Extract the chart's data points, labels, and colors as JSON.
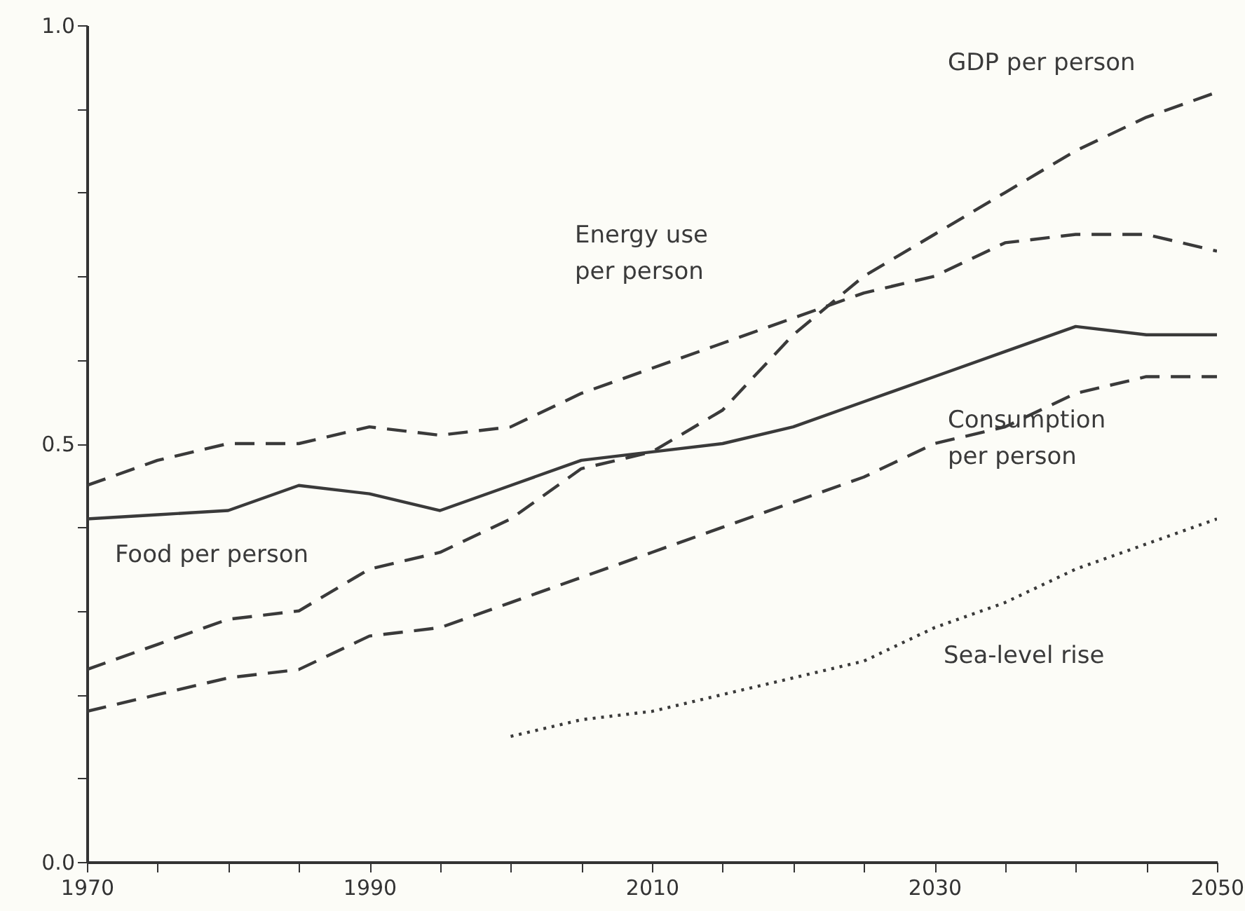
{
  "chart_data": {
    "type": "line",
    "x": [
      1970,
      1975,
      1980,
      1985,
      1990,
      1995,
      2000,
      2005,
      2010,
      2015,
      2020,
      2025,
      2030,
      2035,
      2040,
      2045,
      2050
    ],
    "series": [
      {
        "name": "GDP per person",
        "color": "#3a3a3a",
        "line_style": "dashed",
        "values": [
          0.23,
          0.26,
          0.29,
          0.3,
          0.35,
          0.37,
          0.41,
          0.47,
          0.49,
          0.54,
          0.63,
          0.7,
          0.75,
          0.8,
          0.85,
          0.89,
          0.92
        ]
      },
      {
        "name": "Energy use per person",
        "color": "#3a3a3a",
        "line_style": "dashed",
        "values": [
          0.45,
          0.48,
          0.5,
          0.5,
          0.52,
          0.51,
          0.52,
          0.56,
          0.59,
          0.62,
          0.65,
          0.68,
          0.7,
          0.74,
          0.75,
          0.75,
          0.73
        ]
      },
      {
        "name": "Food per person",
        "color": "#3a3a3a",
        "line_style": "solid",
        "values": [
          0.41,
          0.415,
          0.42,
          0.45,
          0.44,
          0.42,
          0.45,
          0.48,
          0.49,
          0.5,
          0.52,
          0.55,
          0.58,
          0.61,
          0.64,
          0.63,
          0.63
        ]
      },
      {
        "name": "Consumption per person",
        "color": "#3a3a3a",
        "line_style": "dashed",
        "values": [
          0.18,
          0.2,
          0.22,
          0.23,
          0.27,
          0.28,
          0.31,
          0.34,
          0.37,
          0.4,
          0.43,
          0.46,
          0.5,
          0.52,
          0.56,
          0.58,
          0.58
        ]
      },
      {
        "name": "Sea-level rise",
        "color": "#3a3a3a",
        "line_style": "dotted",
        "values": [
          null,
          null,
          null,
          null,
          null,
          null,
          0.15,
          0.17,
          0.18,
          0.2,
          0.22,
          0.24,
          0.28,
          0.31,
          0.35,
          0.38,
          0.41
        ]
      }
    ],
    "xlim": [
      1970,
      2050
    ],
    "xticks": [
      1970,
      {
        "value": 1975,
        "label": null
      },
      {
        "value": 1980,
        "label": null
      },
      {
        "value": 1985,
        "label": null
      },
      1990,
      {
        "value": 1995,
        "label": null
      },
      {
        "value": 2000,
        "label": null
      },
      {
        "value": 2005,
        "label": null
      },
      2010,
      {
        "value": 2015,
        "label": null
      },
      {
        "value": 2020,
        "label": null
      },
      {
        "value": 2025,
        "label": null
      },
      2030,
      {
        "value": 2035,
        "label": null
      },
      {
        "value": 2040,
        "label": null
      },
      {
        "value": 2045,
        "label": null
      },
      2050
    ],
    "ylim": [
      0,
      1
    ],
    "yticks": [
      {
        "value": 0,
        "label": "0.0"
      },
      {
        "value": 0.1,
        "label": null
      },
      {
        "value": 0.2,
        "label": null
      },
      {
        "value": 0.3,
        "label": null
      },
      {
        "value": 0.4,
        "label": null
      },
      {
        "value": 0.5,
        "label": "0.5"
      },
      {
        "value": 0.6,
        "label": null
      },
      {
        "value": 0.7,
        "label": null
      },
      {
        "value": 0.8,
        "label": null
      },
      {
        "value": 0.9,
        "label": null
      },
      {
        "value": 1,
        "label": "1.0"
      }
    ],
    "grid": false,
    "legend": false,
    "marker": "none"
  }
}
